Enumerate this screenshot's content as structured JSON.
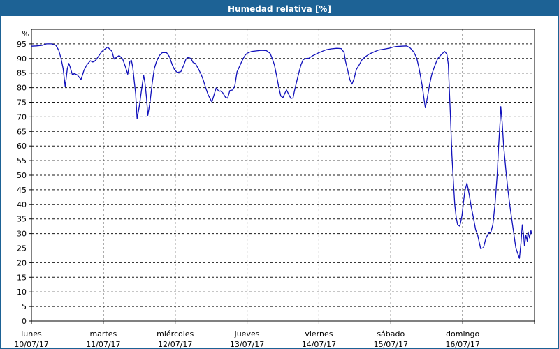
{
  "window": {
    "title": "Humedad relativa [%]"
  },
  "colors": {
    "titlebar_bg": "#1d6295",
    "titlebar_text": "#ffffff",
    "page_border": "#1d6295",
    "plot_background": "#ffffff",
    "grid": "#1a1a1a",
    "axis": "#000000",
    "tick_text": "#000000",
    "line": "#1111bb"
  },
  "chart_data": {
    "type": "line",
    "title": "Humedad relativa [%]",
    "ylabel": "%",
    "ylim": [
      0,
      100
    ],
    "yticks": [
      0,
      5,
      10,
      15,
      20,
      25,
      30,
      35,
      40,
      45,
      50,
      55,
      60,
      65,
      70,
      75,
      80,
      85,
      90,
      95
    ],
    "grid": true,
    "legend": "none",
    "x_axis": {
      "unit": "days",
      "range_days": 7,
      "day_labels": [
        {
          "name": "lunes",
          "date": "10/07/17"
        },
        {
          "name": "martes",
          "date": "11/07/17"
        },
        {
          "name": "miércoles",
          "date": "12/07/17"
        },
        {
          "name": "jueves",
          "date": "13/07/17"
        },
        {
          "name": "viernes",
          "date": "14/07/17"
        },
        {
          "name": "sábado",
          "date": "15/07/17"
        },
        {
          "name": "domingo",
          "date": "16/07/17"
        }
      ]
    },
    "series": [
      {
        "name": "Humedad relativa [%]",
        "color": "#1111bb",
        "points": [
          [
            0,
            94.2
          ],
          [
            0.07,
            94.3
          ],
          [
            0.15,
            94.5
          ],
          [
            0.21,
            95
          ],
          [
            0.28,
            95
          ],
          [
            0.34,
            94.5
          ],
          [
            0.38,
            92.8
          ],
          [
            0.41,
            90.2
          ],
          [
            0.44,
            86.6
          ],
          [
            0.47,
            80.3
          ],
          [
            0.5,
            86.6
          ],
          [
            0.52,
            88.3
          ],
          [
            0.54,
            87
          ],
          [
            0.57,
            84.4
          ],
          [
            0.6,
            84.8
          ],
          [
            0.64,
            84.3
          ],
          [
            0.69,
            82.8
          ],
          [
            0.73,
            85.9
          ],
          [
            0.77,
            87.8
          ],
          [
            0.82,
            89.2
          ],
          [
            0.85,
            88.8
          ],
          [
            0.87,
            88.9
          ],
          [
            0.9,
            89.6
          ],
          [
            0.94,
            91
          ],
          [
            0.98,
            92.4
          ],
          [
            1.01,
            93
          ],
          [
            1.06,
            93.9
          ],
          [
            1.12,
            92.5
          ],
          [
            1.15,
            89.8
          ],
          [
            1.19,
            90.5
          ],
          [
            1.22,
            91
          ],
          [
            1.25,
            90.3
          ],
          [
            1.27,
            89.8
          ],
          [
            1.31,
            87
          ],
          [
            1.34,
            84.6
          ],
          [
            1.37,
            89
          ],
          [
            1.39,
            89.4
          ],
          [
            1.41,
            87
          ],
          [
            1.43,
            82.3
          ],
          [
            1.45,
            78
          ],
          [
            1.47,
            69.4
          ],
          [
            1.5,
            73.5
          ],
          [
            1.53,
            79
          ],
          [
            1.56,
            84.3
          ],
          [
            1.58,
            81.5
          ],
          [
            1.6,
            76.7
          ],
          [
            1.62,
            70.5
          ],
          [
            1.65,
            75.1
          ],
          [
            1.68,
            81.5
          ],
          [
            1.71,
            86.6
          ],
          [
            1.74,
            89
          ],
          [
            1.78,
            91
          ],
          [
            1.82,
            92
          ],
          [
            1.88,
            92
          ],
          [
            1.92,
            90.6
          ],
          [
            1.96,
            87.8
          ],
          [
            1.99,
            86.2
          ],
          [
            2.03,
            85.2
          ],
          [
            2.08,
            85.5
          ],
          [
            2.12,
            87.8
          ],
          [
            2.15,
            89.8
          ],
          [
            2.18,
            90.4
          ],
          [
            2.22,
            90
          ],
          [
            2.25,
            88.6
          ],
          [
            2.28,
            88.3
          ],
          [
            2.32,
            86.6
          ],
          [
            2.36,
            84.6
          ],
          [
            2.39,
            82.7
          ],
          [
            2.42,
            80.3
          ],
          [
            2.46,
            77.5
          ],
          [
            2.51,
            75.1
          ],
          [
            2.54,
            77.5
          ],
          [
            2.57,
            79.9
          ],
          [
            2.61,
            78.7
          ],
          [
            2.63,
            78.9
          ],
          [
            2.66,
            78.3
          ],
          [
            2.7,
            76.7
          ],
          [
            2.73,
            76.4
          ],
          [
            2.76,
            79
          ],
          [
            2.8,
            79.2
          ],
          [
            2.83,
            80.7
          ],
          [
            2.86,
            85.4
          ],
          [
            2.89,
            87
          ],
          [
            2.93,
            89.2
          ],
          [
            2.97,
            91
          ],
          [
            3,
            91.8
          ],
          [
            3.06,
            92.4
          ],
          [
            3.13,
            92.6
          ],
          [
            3.2,
            92.8
          ],
          [
            3.27,
            92.7
          ],
          [
            3.32,
            91.8
          ],
          [
            3.35,
            90
          ],
          [
            3.38,
            87.8
          ],
          [
            3.41,
            84.3
          ],
          [
            3.44,
            80.3
          ],
          [
            3.47,
            77.1
          ],
          [
            3.5,
            76.6
          ],
          [
            3.53,
            78.3
          ],
          [
            3.55,
            79.2
          ],
          [
            3.58,
            77.7
          ],
          [
            3.61,
            76.3
          ],
          [
            3.64,
            76.5
          ],
          [
            3.66,
            79
          ],
          [
            3.69,
            82
          ],
          [
            3.72,
            85
          ],
          [
            3.75,
            87.8
          ],
          [
            3.78,
            89.6
          ],
          [
            3.82,
            90
          ],
          [
            3.86,
            90.1
          ],
          [
            3.91,
            90.9
          ],
          [
            3.95,
            91.4
          ],
          [
            3.99,
            91.9
          ],
          [
            4.03,
            92.3
          ],
          [
            4.1,
            93
          ],
          [
            4.17,
            93.3
          ],
          [
            4.25,
            93.5
          ],
          [
            4.31,
            93.4
          ],
          [
            4.35,
            92.1
          ],
          [
            4.37,
            89
          ],
          [
            4.4,
            86
          ],
          [
            4.43,
            82.7
          ],
          [
            4.46,
            81.2
          ],
          [
            4.49,
            83.1
          ],
          [
            4.52,
            86.2
          ],
          [
            4.56,
            87.8
          ],
          [
            4.6,
            89.6
          ],
          [
            4.65,
            90.7
          ],
          [
            4.7,
            91.5
          ],
          [
            4.76,
            92.2
          ],
          [
            4.83,
            92.9
          ],
          [
            4.91,
            93.2
          ],
          [
            4.99,
            93.6
          ],
          [
            5.03,
            93.9
          ],
          [
            5.08,
            94.1
          ],
          [
            5.15,
            94.2
          ],
          [
            5.22,
            94.3
          ],
          [
            5.27,
            93.6
          ],
          [
            5.32,
            92.2
          ],
          [
            5.36,
            90.2
          ],
          [
            5.39,
            87
          ],
          [
            5.41,
            84.3
          ],
          [
            5.44,
            80.3
          ],
          [
            5.46,
            76.5
          ],
          [
            5.48,
            73.1
          ],
          [
            5.51,
            76.7
          ],
          [
            5.54,
            81.1
          ],
          [
            5.57,
            84.5
          ],
          [
            5.61,
            87.4
          ],
          [
            5.65,
            89.8
          ],
          [
            5.69,
            91
          ],
          [
            5.73,
            92
          ],
          [
            5.75,
            92.4
          ],
          [
            5.78,
            91.5
          ],
          [
            5.8,
            88
          ],
          [
            5.81,
            82
          ],
          [
            5.83,
            70
          ],
          [
            5.85,
            57
          ],
          [
            5.87,
            48
          ],
          [
            5.89,
            40
          ],
          [
            5.91,
            35.5
          ],
          [
            5.93,
            33
          ],
          [
            5.96,
            32.5
          ],
          [
            5.99,
            36
          ],
          [
            6.01,
            40.5
          ],
          [
            6.03,
            44.5
          ],
          [
            6.06,
            47.3
          ],
          [
            6.09,
            43.5
          ],
          [
            6.12,
            39
          ],
          [
            6.15,
            35.3
          ],
          [
            6.18,
            31.3
          ],
          [
            6.21,
            29.4
          ],
          [
            6.25,
            24.8
          ],
          [
            6.29,
            25.2
          ],
          [
            6.32,
            28.2
          ],
          [
            6.36,
            30.2
          ],
          [
            6.39,
            30.3
          ],
          [
            6.42,
            33
          ],
          [
            6.45,
            40
          ],
          [
            6.48,
            50
          ],
          [
            6.5,
            60
          ],
          [
            6.52,
            68
          ],
          [
            6.53,
            73.5
          ],
          [
            6.55,
            68
          ],
          [
            6.57,
            60
          ],
          [
            6.6,
            52
          ],
          [
            6.63,
            45
          ],
          [
            6.66,
            39
          ],
          [
            6.7,
            32
          ],
          [
            6.74,
            25
          ],
          [
            6.79,
            21.5
          ],
          [
            6.81,
            26.5
          ],
          [
            6.83,
            33
          ],
          [
            6.85,
            28.9
          ],
          [
            6.86,
            25.8
          ],
          [
            6.88,
            29.4
          ],
          [
            6.9,
            27.4
          ],
          [
            6.91,
            30.6
          ],
          [
            6.93,
            28.5
          ],
          [
            6.95,
            31
          ],
          [
            6.96,
            30
          ]
        ]
      }
    ]
  }
}
